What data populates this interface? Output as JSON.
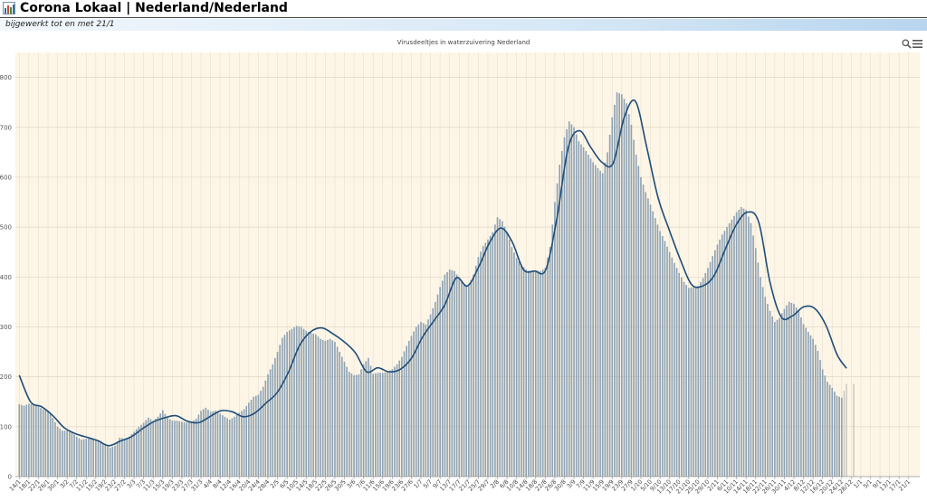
{
  "header": {
    "title": "Corona Lokaal | Nederland/Nederland",
    "icon": "bar-chart-icon"
  },
  "subheader": {
    "updated_text": "bijgewerkt tot en met 21/1"
  },
  "toolbar": {
    "zoom_icon": "zoom-icon",
    "menu_icon": "hamburger-menu-icon"
  },
  "colors": {
    "bar": "#8fa3b4",
    "bar_last": "#cfcbc7",
    "line": "#1f4e79",
    "plot_bg": "#fdf5e6",
    "grid": "#e9e0cf"
  },
  "chart_data": {
    "type": "bar",
    "title": "Virusdeeltjes in waterzuivering Nederland",
    "xlabel": "",
    "ylabel": "",
    "ylim": [
      0,
      850
    ],
    "yticks": [
      0,
      100,
      200,
      300,
      400,
      500,
      600,
      700,
      800
    ],
    "grid": true,
    "legend": "none",
    "x_tick_labels": [
      "14/1",
      "18/1",
      "22/1",
      "26/1",
      "30/1",
      "3/2",
      "7/2",
      "11/2",
      "15/2",
      "19/2",
      "23/2",
      "27/2",
      "3/3",
      "7/3",
      "11/3",
      "15/3",
      "19/3",
      "23/3",
      "27/3",
      "31/3",
      "4/4",
      "8/4",
      "12/4",
      "16/4",
      "20/4",
      "24/4",
      "28/4",
      "2/5",
      "6/5",
      "10/5",
      "14/5",
      "18/5",
      "22/5",
      "26/5",
      "30/5",
      "3/6",
      "7/6",
      "11/6",
      "15/6",
      "19/6",
      "23/6",
      "27/6",
      "1/7",
      "5/7",
      "9/7",
      "13/7",
      "17/7",
      "21/7",
      "25/7",
      "29/7",
      "2/8",
      "6/8",
      "10/8",
      "14/8",
      "18/8",
      "22/8",
      "26/8",
      "30/8",
      "3/9",
      "7/9",
      "11/9",
      "15/9",
      "19/9",
      "23/9",
      "27/9",
      "1/10",
      "5/10",
      "9/10",
      "13/10",
      "17/10",
      "21/10",
      "25/10",
      "29/10",
      "2/11",
      "6/11",
      "10/11",
      "14/11",
      "18/11",
      "22/11",
      "26/11",
      "30/11",
      "4/12",
      "8/12",
      "12/12",
      "16/12",
      "20/12",
      "24/12",
      "28/12",
      "1/1",
      "5/1",
      "9/1",
      "13/1",
      "17/1",
      "21/1"
    ],
    "days_per_tick": 4,
    "bar_anchors": [
      [
        0,
        145
      ],
      [
        2,
        142
      ],
      [
        4,
        146
      ],
      [
        6,
        145
      ],
      [
        8,
        140
      ],
      [
        10,
        135
      ],
      [
        12,
        132
      ],
      [
        14,
        118
      ],
      [
        16,
        100
      ],
      [
        18,
        92
      ],
      [
        20,
        92
      ],
      [
        22,
        88
      ],
      [
        24,
        80
      ],
      [
        26,
        74
      ],
      [
        28,
        76
      ],
      [
        30,
        77
      ],
      [
        32,
        75
      ],
      [
        34,
        70
      ],
      [
        36,
        64
      ],
      [
        38,
        58
      ],
      [
        40,
        62
      ],
      [
        42,
        78
      ],
      [
        44,
        76
      ],
      [
        46,
        80
      ],
      [
        48,
        90
      ],
      [
        50,
        100
      ],
      [
        52,
        108
      ],
      [
        54,
        118
      ],
      [
        56,
        112
      ],
      [
        58,
        120
      ],
      [
        60,
        133
      ],
      [
        62,
        118
      ],
      [
        64,
        112
      ],
      [
        66,
        112
      ],
      [
        68,
        110
      ],
      [
        70,
        108
      ],
      [
        72,
        110
      ],
      [
        74,
        116
      ],
      [
        76,
        132
      ],
      [
        78,
        138
      ],
      [
        80,
        130
      ],
      [
        82,
        132
      ],
      [
        84,
        126
      ],
      [
        86,
        120
      ],
      [
        88,
        114
      ],
      [
        90,
        120
      ],
      [
        92,
        128
      ],
      [
        94,
        135
      ],
      [
        96,
        148
      ],
      [
        98,
        160
      ],
      [
        100,
        164
      ],
      [
        102,
        180
      ],
      [
        104,
        205
      ],
      [
        106,
        225
      ],
      [
        108,
        250
      ],
      [
        110,
        278
      ],
      [
        112,
        290
      ],
      [
        114,
        296
      ],
      [
        116,
        302
      ],
      [
        118,
        300
      ],
      [
        120,
        292
      ],
      [
        122,
        288
      ],
      [
        124,
        285
      ],
      [
        126,
        276
      ],
      [
        128,
        272
      ],
      [
        130,
        276
      ],
      [
        132,
        270
      ],
      [
        134,
        250
      ],
      [
        136,
        230
      ],
      [
        138,
        210
      ],
      [
        140,
        203
      ],
      [
        142,
        205
      ],
      [
        144,
        225
      ],
      [
        146,
        238
      ],
      [
        148,
        206
      ],
      [
        150,
        208
      ],
      [
        152,
        208
      ],
      [
        154,
        210
      ],
      [
        156,
        215
      ],
      [
        158,
        225
      ],
      [
        160,
        240
      ],
      [
        162,
        262
      ],
      [
        164,
        282
      ],
      [
        166,
        300
      ],
      [
        168,
        310
      ],
      [
        170,
        305
      ],
      [
        172,
        325
      ],
      [
        174,
        350
      ],
      [
        176,
        380
      ],
      [
        178,
        405
      ],
      [
        180,
        415
      ],
      [
        182,
        412
      ],
      [
        184,
        398
      ],
      [
        186,
        385
      ],
      [
        188,
        382
      ],
      [
        190,
        405
      ],
      [
        192,
        440
      ],
      [
        194,
        462
      ],
      [
        196,
        475
      ],
      [
        198,
        490
      ],
      [
        200,
        520
      ],
      [
        202,
        512
      ],
      [
        204,
        490
      ],
      [
        206,
        460
      ],
      [
        208,
        438
      ],
      [
        210,
        425
      ],
      [
        212,
        415
      ],
      [
        214,
        410
      ],
      [
        216,
        413
      ],
      [
        218,
        412
      ],
      [
        220,
        418
      ],
      [
        222,
        460
      ],
      [
        224,
        550
      ],
      [
        226,
        625
      ],
      [
        228,
        680
      ],
      [
        230,
        712
      ],
      [
        232,
        700
      ],
      [
        234,
        672
      ],
      [
        236,
        660
      ],
      [
        238,
        645
      ],
      [
        240,
        630
      ],
      [
        242,
        618
      ],
      [
        244,
        608
      ],
      [
        246,
        650
      ],
      [
        248,
        720
      ],
      [
        250,
        770
      ],
      [
        252,
        766
      ],
      [
        254,
        748
      ],
      [
        256,
        705
      ],
      [
        258,
        645
      ],
      [
        260,
        600
      ],
      [
        262,
        570
      ],
      [
        264,
        545
      ],
      [
        266,
        518
      ],
      [
        268,
        492
      ],
      [
        270,
        472
      ],
      [
        272,
        450
      ],
      [
        274,
        428
      ],
      [
        276,
        408
      ],
      [
        278,
        390
      ],
      [
        280,
        378
      ],
      [
        282,
        380
      ],
      [
        284,
        382
      ],
      [
        286,
        398
      ],
      [
        288,
        418
      ],
      [
        290,
        442
      ],
      [
        292,
        465
      ],
      [
        294,
        485
      ],
      [
        296,
        500
      ],
      [
        298,
        515
      ],
      [
        300,
        530
      ],
      [
        302,
        540
      ],
      [
        304,
        534
      ],
      [
        306,
        508
      ],
      [
        308,
        458
      ],
      [
        310,
        400
      ],
      [
        312,
        360
      ],
      [
        314,
        332
      ],
      [
        316,
        310
      ],
      [
        318,
        318
      ],
      [
        320,
        336
      ],
      [
        322,
        350
      ],
      [
        324,
        346
      ],
      [
        326,
        332
      ],
      [
        328,
        306
      ],
      [
        330,
        290
      ],
      [
        332,
        276
      ],
      [
        334,
        252
      ],
      [
        336,
        215
      ],
      [
        338,
        190
      ],
      [
        340,
        178
      ],
      [
        342,
        162
      ],
      [
        344,
        158
      ],
      [
        346,
        186
      ]
    ],
    "trend_anchors": [
      [
        0,
        203
      ],
      [
        6,
        150
      ],
      [
        12,
        140
      ],
      [
        18,
        122
      ],
      [
        24,
        98
      ],
      [
        30,
        86
      ],
      [
        36,
        79
      ],
      [
        42,
        72
      ],
      [
        48,
        62
      ],
      [
        54,
        71
      ],
      [
        60,
        80
      ],
      [
        66,
        96
      ],
      [
        72,
        110
      ],
      [
        78,
        118
      ],
      [
        84,
        122
      ],
      [
        90,
        111
      ],
      [
        96,
        108
      ],
      [
        102,
        120
      ],
      [
        108,
        132
      ],
      [
        114,
        130
      ],
      [
        120,
        120
      ],
      [
        126,
        127
      ],
      [
        132,
        147
      ],
      [
        138,
        168
      ],
      [
        144,
        208
      ],
      [
        150,
        262
      ],
      [
        156,
        290
      ],
      [
        162,
        298
      ],
      [
        168,
        286
      ],
      [
        174,
        270
      ],
      [
        180,
        248
      ],
      [
        186,
        210
      ],
      [
        192,
        218
      ],
      [
        198,
        210
      ],
      [
        204,
        215
      ],
      [
        210,
        237
      ],
      [
        216,
        280
      ],
      [
        222,
        312
      ],
      [
        228,
        345
      ],
      [
        234,
        398
      ],
      [
        240,
        382
      ],
      [
        246,
        420
      ],
      [
        252,
        470
      ],
      [
        258,
        498
      ],
      [
        264,
        470
      ],
      [
        270,
        415
      ],
      [
        276,
        412
      ],
      [
        282,
        415
      ],
      [
        288,
        520
      ],
      [
        294,
        660
      ],
      [
        300,
        693
      ],
      [
        306,
        660
      ],
      [
        312,
        630
      ],
      [
        318,
        628
      ],
      [
        324,
        720
      ],
      [
        330,
        752
      ],
      [
        336,
        660
      ],
      [
        342,
        560
      ],
      [
        348,
        495
      ],
      [
        354,
        435
      ],
      [
        360,
        385
      ],
      [
        366,
        382
      ],
      [
        372,
        402
      ],
      [
        378,
        455
      ],
      [
        384,
        505
      ],
      [
        390,
        530
      ],
      [
        396,
        510
      ],
      [
        402,
        390
      ],
      [
        408,
        320
      ],
      [
        414,
        322
      ],
      [
        420,
        340
      ],
      [
        426,
        337
      ],
      [
        432,
        303
      ],
      [
        438,
        244
      ],
      [
        443,
        217
      ]
    ]
  }
}
